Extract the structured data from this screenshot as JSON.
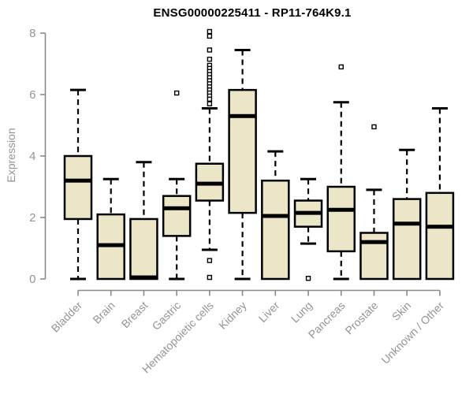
{
  "figure": {
    "title": "ENSG00000225411 - RP11-764K9.1",
    "y_axis_label": "Expression"
  },
  "chart_data": {
    "type": "boxplot",
    "title": "ENSG00000225411 - RP11-764K9.1",
    "xlabel": "",
    "ylabel": "Expression",
    "ylim": [
      0,
      8
    ],
    "yticks": [
      0,
      2,
      4,
      6,
      8
    ],
    "grid": false,
    "legend": false,
    "colors": {
      "box_fill": "#ECE6C8",
      "box_stroke": "#000000",
      "median": "#000000",
      "whisker": "#000000",
      "outlier_stroke": "#000000",
      "axis": "#8A8A8A",
      "tick_label": "#949494",
      "title": "#000000",
      "background": "#FFFFFF"
    },
    "categories": [
      "Bladder",
      "Brain",
      "Breast",
      "Gastric",
      "Hematopoietic cells",
      "Kidney",
      "Liver",
      "Lung",
      "Pancreas",
      "Prostate",
      "Skin",
      "Unknown / Other"
    ],
    "boxes": [
      {
        "category": "Bladder",
        "whisker_low": 0,
        "q1": 1.95,
        "median": 3.2,
        "q3": 4.0,
        "whisker_high": 6.15,
        "outliers": []
      },
      {
        "category": "Brain",
        "whisker_low": 0,
        "q1": 0,
        "median": 1.1,
        "q3": 2.1,
        "whisker_high": 3.25,
        "outliers": []
      },
      {
        "category": "Breast",
        "whisker_low": 0,
        "q1": 0,
        "median": 0.05,
        "q3": 1.95,
        "whisker_high": 3.8,
        "outliers": []
      },
      {
        "category": "Gastric",
        "whisker_low": 0,
        "q1": 1.4,
        "median": 2.3,
        "q3": 2.7,
        "whisker_high": 3.25,
        "outliers": [
          6.05
        ]
      },
      {
        "category": "Hematopoietic cells",
        "whisker_low": 0.95,
        "q1": 2.55,
        "median": 3.1,
        "q3": 3.75,
        "whisker_high": 5.55,
        "outliers": [
          8.05,
          7.9,
          7.45,
          7.15,
          6.95,
          6.85,
          6.75,
          6.65,
          6.55,
          6.45,
          6.35,
          6.25,
          6.15,
          6.05,
          5.95,
          5.85,
          5.7,
          0.6,
          0.05
        ]
      },
      {
        "category": "Kidney",
        "whisker_low": 0,
        "q1": 2.15,
        "median": 5.3,
        "q3": 6.15,
        "whisker_high": 7.45,
        "outliers": []
      },
      {
        "category": "Liver",
        "whisker_low": 0,
        "q1": 0,
        "median": 2.05,
        "q3": 3.2,
        "whisker_high": 4.15,
        "outliers": []
      },
      {
        "category": "Lung",
        "whisker_low": 1.15,
        "q1": 1.7,
        "median": 2.15,
        "q3": 2.55,
        "whisker_high": 3.25,
        "outliers": [
          0.02
        ]
      },
      {
        "category": "Pancreas",
        "whisker_low": 0,
        "q1": 0.9,
        "median": 2.25,
        "q3": 3.0,
        "whisker_high": 5.75,
        "outliers": [
          6.9
        ]
      },
      {
        "category": "Prostate",
        "whisker_low": 0,
        "q1": 0,
        "median": 1.2,
        "q3": 1.5,
        "whisker_high": 2.9,
        "outliers": [
          4.95
        ]
      },
      {
        "category": "Skin",
        "whisker_low": 0,
        "q1": 0,
        "median": 1.8,
        "q3": 2.6,
        "whisker_high": 4.2,
        "outliers": []
      },
      {
        "category": "Unknown / Other",
        "whisker_low": 0,
        "q1": 0,
        "median": 1.7,
        "q3": 2.8,
        "whisker_high": 5.55,
        "outliers": []
      }
    ]
  }
}
